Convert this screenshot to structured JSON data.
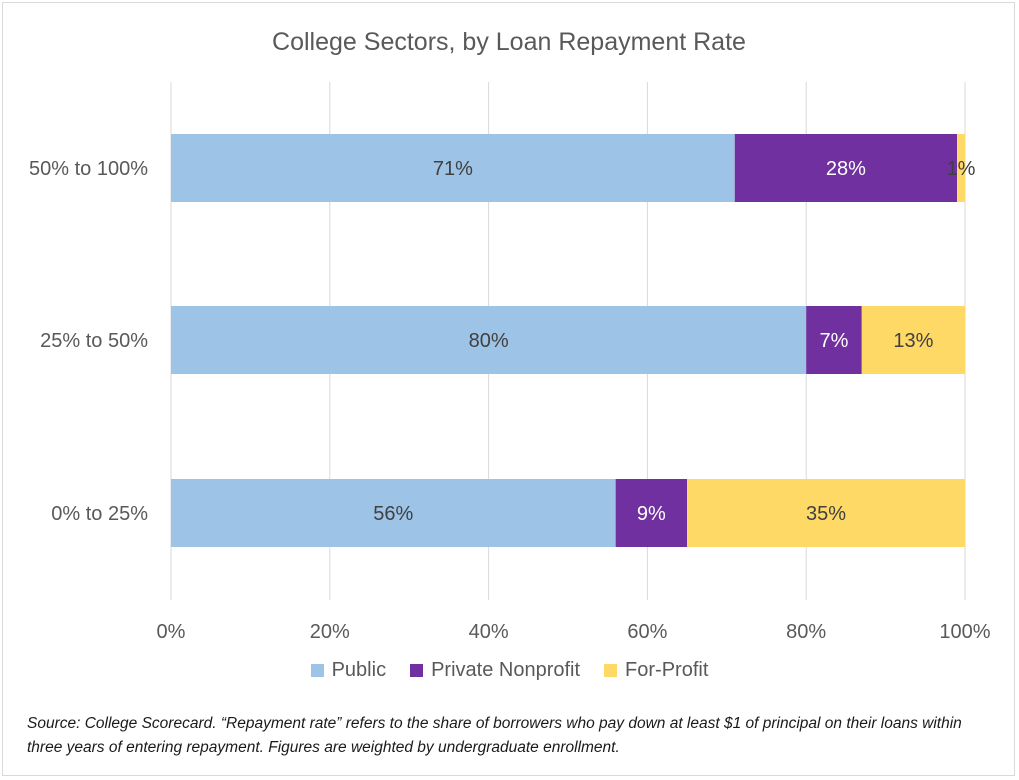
{
  "chart_data": {
    "type": "bar",
    "orientation": "horizontal",
    "stacked": true,
    "title": "College Sectors, by Loan Repayment Rate",
    "categories": [
      "50% to 100%",
      "25% to 50%",
      "0% to 25%"
    ],
    "series": [
      {
        "name": "Public",
        "color": "#9dc3e6",
        "label_color": "#404040",
        "values": [
          71,
          80,
          56
        ],
        "labels": [
          "71%",
          "80%",
          "56%"
        ]
      },
      {
        "name": "Private Nonprofit",
        "color": "#7030a0",
        "label_color": "#ffffff",
        "values": [
          28,
          7,
          9
        ],
        "labels": [
          "28%",
          "7%",
          "9%"
        ]
      },
      {
        "name": "For-Profit",
        "color": "#ffd966",
        "label_color": "#404040",
        "values": [
          1,
          13,
          35
        ],
        "labels": [
          "1%",
          "13%",
          "35%"
        ]
      }
    ],
    "xlim": [
      0,
      100
    ],
    "xticks": [
      0,
      20,
      40,
      60,
      80,
      100
    ],
    "xtick_labels": [
      "0%",
      "20%",
      "40%",
      "60%",
      "80%",
      "100%"
    ],
    "grid": true,
    "legend_position": "bottom"
  },
  "source_note": "Source: College Scorecard. “Repayment rate” refers to the share of borrowers who pay down at least $1 of principal on their loans within three years of entering repayment. Figures are weighted by undergraduate enrollment."
}
